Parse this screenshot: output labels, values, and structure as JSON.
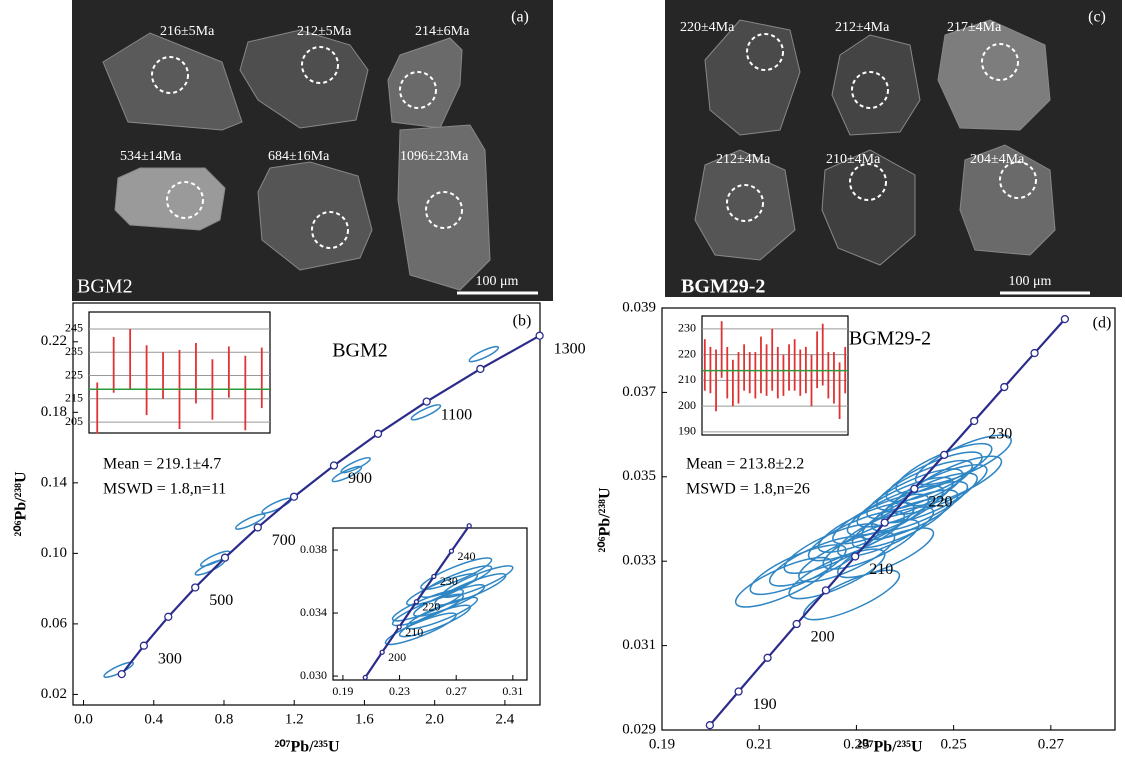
{
  "images": [
    {
      "label": "(a)",
      "sample": "BGM2",
      "scale": "100 μm",
      "ages": [
        "216±5Ma",
        "212±5Ma",
        "214±6Ma",
        "534±14Ma",
        "684±16Ma",
        "1096±23Ma"
      ]
    },
    {
      "label": "(c)",
      "sample": "BGM29-2",
      "scale": "100 μm",
      "ages": [
        "220±4Ma",
        "212±4Ma",
        "217±4Ma",
        "212±4Ma",
        "210±4Ma",
        "204±4Ma"
      ]
    }
  ],
  "chart_data": [
    {
      "type": "concordia",
      "label": "(b)",
      "title": "BGM2",
      "xlabel": "²⁰⁷Pb/²³⁵U",
      "ylabel": "²⁰⁶Pb/²³⁸U",
      "xlim": [
        -0.06,
        2.6
      ],
      "ylim": [
        0.014,
        0.242
      ],
      "xticks": [
        {
          "value": 0,
          "label": "0.0"
        },
        0.4,
        0.8,
        1.2,
        1.6,
        {
          "value": 2,
          "label": "2.0"
        },
        2.4
      ],
      "yticks": [
        0.02,
        0.06,
        {
          "value": 0.1,
          "label": "0.10"
        },
        0.14,
        0.18,
        0.22
      ],
      "x": [
        0.2177,
        0.34373,
        0.48282,
        0.63623,
        0.80557,
        0.99249,
        1.1989,
        1.4264,
        1.6774,
        1.9546,
        2.2603,
        2.5978
      ],
      "y": [
        0.031511,
        0.047638,
        0.064016,
        0.08065,
        0.097543,
        0.1147,
        0.13213,
        0.14983,
        0.16782,
        0.18607,
        0.20459,
        0.22344
      ],
      "point_labels": [
        null,
        300,
        null,
        500,
        null,
        700,
        null,
        900,
        null,
        1100,
        null,
        1300
      ],
      "ellipses": {
        "x": [
          0.2,
          0.72,
          0.75,
          0.95,
          1.1,
          1.5,
          1.55,
          1.95,
          2.28
        ],
        "y": [
          0.034,
          0.092,
          0.097,
          0.118,
          0.127,
          0.145,
          0.15,
          0.18,
          0.213
        ]
      },
      "color": "#2b2b8c",
      "ellipse_color": "#2f86c4",
      "annotations": [
        "Mean = 219.1±4.7",
        "MSWD = 1.8,n=11"
      ]
    },
    {
      "type": "concordia",
      "xlim": [
        0.183,
        0.32
      ],
      "ylim": [
        0.02975,
        0.0394
      ],
      "xticks": [
        0.19,
        0.23,
        0.27,
        0.31
      ],
      "yticks": [
        {
          "value": 0.03,
          "label": "0.030"
        },
        0.034,
        0.038
      ],
      "x": [
        0.20576,
        0.2177,
        0.22975,
        0.24192,
        0.25423,
        0.26665,
        0.27917
      ],
      "y": [
        0.029912,
        0.031511,
        0.033113,
        0.034717,
        0.036323,
        0.037932,
        0.039544
      ],
      "point_labels": [
        null,
        200,
        210,
        220,
        230,
        240,
        null
      ],
      "ellipses": {
        "x": [
          0.25,
          0.26,
          0.27,
          0.28,
          0.285,
          0.26,
          0.255,
          0.245,
          0.27,
          0.265,
          0.25
        ],
        "y": [
          0.0345,
          0.0355,
          0.036,
          0.0355,
          0.036,
          0.034,
          0.0335,
          0.033,
          0.0365,
          0.0348,
          0.0342
        ]
      },
      "color": "#2b2b8c",
      "ellipse_color": "#2f86c4"
    },
    {
      "type": "errorbar",
      "ylim": [
        200.3,
        252.3
      ],
      "yticks": [
        205,
        215,
        225,
        235,
        245
      ],
      "grid": true,
      "values": [
        211,
        229.6,
        232,
        223,
        225,
        219,
        226,
        219,
        226.5,
        217.5,
        224
      ],
      "errors": [
        11,
        12,
        13,
        15,
        10,
        17,
        13,
        13,
        11,
        16,
        13
      ],
      "mean": 219.1,
      "color": "#e03232",
      "mean_color": "#2a9a3a"
    },
    {
      "type": "concordia",
      "label": "(d)",
      "title": "BGM29-2",
      "xlabel": "²⁰⁷Pb/²³⁵U",
      "ylabel": "²⁰⁶Pb/²³⁸U",
      "xlim": [
        0.19,
        0.2832
      ],
      "ylim": [
        0.029,
        0.039
      ],
      "xticks": [
        0.19,
        0.21,
        0.23,
        0.25,
        0.27
      ],
      "yticks": [
        0.029,
        0.031,
        0.033,
        0.035,
        0.037,
        0.039
      ],
      "x": [
        0.19985,
        0.20576,
        0.21172,
        0.2177,
        0.22372,
        0.22975,
        0.23582,
        0.24192,
        0.24806,
        0.25423,
        0.26042,
        0.26665,
        0.27289
      ],
      "y": [
        0.029114,
        0.029912,
        0.030711,
        0.031511,
        0.032309,
        0.033113,
        0.033914,
        0.034717,
        0.035519,
        0.036323,
        0.037127,
        0.037932,
        0.038737
      ],
      "point_labels": [
        null,
        190,
        null,
        200,
        null,
        210,
        null,
        220,
        null,
        230,
        null,
        null,
        null
      ],
      "ellipses": {
        "x": [
          0.215,
          0.218,
          0.222,
          0.225,
          0.228,
          0.23,
          0.232,
          0.233,
          0.235,
          0.236,
          0.238,
          0.239,
          0.24,
          0.241,
          0.242,
          0.243,
          0.244,
          0.245,
          0.246,
          0.247,
          0.248,
          0.25,
          0.226,
          0.229,
          0.236,
          0.252
        ],
        "y": [
          0.0325,
          0.0328,
          0.033,
          0.0333,
          0.0331,
          0.0336,
          0.0338,
          0.0334,
          0.034,
          0.0337,
          0.0342,
          0.0339,
          0.0344,
          0.0341,
          0.0346,
          0.0343,
          0.0348,
          0.0345,
          0.035,
          0.0347,
          0.0352,
          0.0349,
          0.0327,
          0.0322,
          0.0332,
          0.0354
        ]
      },
      "color": "#2b2b8c",
      "ellipse_color": "#2f86c4",
      "annotations": [
        "Mean = 213.8±2.2",
        "MSWD = 1.8,n=26"
      ]
    },
    {
      "type": "errorbar",
      "ylim": [
        188.8,
        235
      ],
      "yticks": [
        190,
        200,
        210,
        220,
        230
      ],
      "grid": true,
      "values": [
        216,
        214,
        210,
        222,
        213,
        209,
        211,
        215,
        213,
        212,
        216,
        214,
        218,
        213,
        212,
        215,
        216,
        213,
        214,
        210,
        218,
        220,
        212,
        211,
        206,
        214
      ],
      "errors": [
        10,
        9,
        12,
        11,
        10,
        9,
        10,
        9,
        8,
        9,
        11,
        10,
        12,
        10,
        8,
        9,
        10,
        9,
        9,
        10,
        11,
        12,
        9,
        10,
        11,
        9
      ],
      "mean": 213.8,
      "color": "#e03232",
      "mean_color": "#2a9a3a"
    }
  ]
}
